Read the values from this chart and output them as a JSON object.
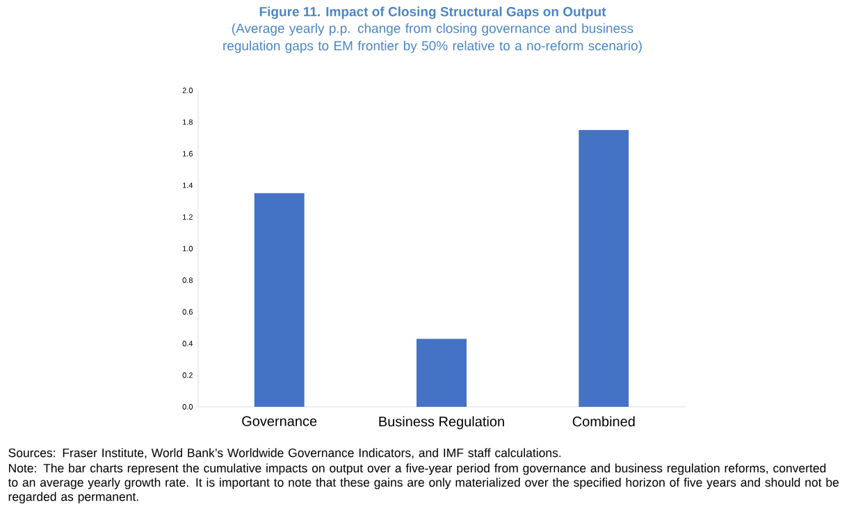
{
  "chart_data": {
    "type": "bar",
    "title": "Figure 11. Impact of Closing Structural Gaps on Output",
    "subtitle": "(Average yearly p.p. change from closing governance and business regulation gaps to EM frontier by 50% relative to a no-reform scenario)",
    "categories": [
      "Governance",
      "Business Regulation",
      "Combined"
    ],
    "values": [
      1.35,
      0.43,
      1.75
    ],
    "color": "#4472c4",
    "ylim": [
      0,
      2.0
    ],
    "yticks": [
      {
        "value": 0,
        "label": "0.0"
      },
      {
        "value": 0.2,
        "label": "0.2"
      },
      {
        "value": 0.4,
        "label": "0.4"
      },
      {
        "value": 0.6,
        "label": "0.6"
      },
      {
        "value": 0.8,
        "label": "0.8"
      },
      {
        "value": 1.0,
        "label": "1.0"
      },
      {
        "value": 1.2,
        "label": "1.2"
      },
      {
        "value": 1.4,
        "label": "1.4"
      },
      {
        "value": 1.6,
        "label": "1.6"
      },
      {
        "value": 1.8,
        "label": "1.8"
      },
      {
        "value": 2.0,
        "label": "2.0"
      }
    ],
    "grid": false,
    "annotations": [
      "Sources: Fraser Institute, World Bank’s Worldwide Governance Indicators, and IMF staff calculations.",
      "Note: The bar charts represent the cumulative impacts on output over a five-year period from governance and business regulation reforms, converted to an average yearly growth rate. It is important to note that these gains are only materialized over the specified horizon of five years and should not be regarded as permanent."
    ]
  }
}
